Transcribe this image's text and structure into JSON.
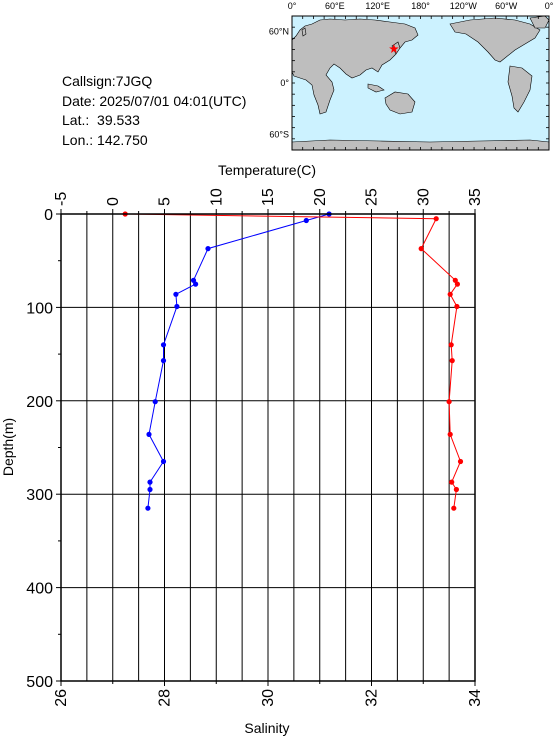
{
  "station": {
    "callsign_label": "Callsign:",
    "callsign": "7JGQ",
    "date_label": "Date:",
    "date": "2025/07/01 04:01(UTC)",
    "lat_label": "Lat.:",
    "lat": "39.533",
    "lon_label": "Lon.:",
    "lon": "142.750"
  },
  "map": {
    "top_ticks": [
      "0°",
      "60°E",
      "120°E",
      "180°",
      "120°W",
      "60°W",
      "0°"
    ],
    "left_ticks": [
      "60°N",
      "0°",
      "60°S"
    ],
    "ocean_color": "#ccf2ff",
    "land_color": "#bebebe",
    "marker_color": "#ff0000",
    "marker_lat": 39.533,
    "marker_lon": 142.75
  },
  "chart_data": {
    "type": "line",
    "ylabel": "Depth(m)",
    "y_ticks": [
      "0",
      "100",
      "200",
      "300",
      "400",
      "500"
    ],
    "ylim": [
      0,
      500
    ],
    "y_inverted": true,
    "grid": true,
    "series": [
      {
        "name": "Temperature(C)",
        "axis": "top",
        "color": "#0000ff",
        "xlim": [
          -5,
          35
        ],
        "x_ticks": [
          "-5",
          "0",
          "5",
          "10",
          "15",
          "20",
          "25",
          "30",
          "35"
        ],
        "depth": [
          0,
          7,
          37,
          71,
          75,
          86,
          99,
          140,
          157,
          201,
          236,
          265,
          287,
          295,
          315
        ],
        "values": [
          20.9,
          18.7,
          9.2,
          7.8,
          8.0,
          6.1,
          6.2,
          4.9,
          4.9,
          4.1,
          3.5,
          4.9,
          3.6,
          3.6,
          3.4
        ]
      },
      {
        "name": "Salinity",
        "axis": "bottom",
        "color": "#ff0000",
        "xlim": [
          26,
          34
        ],
        "x_ticks": [
          "26",
          "28",
          "30",
          "32",
          "34"
        ],
        "depth": [
          0,
          5,
          37,
          71,
          75,
          86,
          99,
          140,
          157,
          201,
          236,
          265,
          287,
          295,
          315
        ],
        "values": [
          27.24,
          33.25,
          32.96,
          33.62,
          33.66,
          33.52,
          33.65,
          33.54,
          33.56,
          33.5,
          33.52,
          33.72,
          33.55,
          33.64,
          33.59
        ]
      }
    ]
  }
}
